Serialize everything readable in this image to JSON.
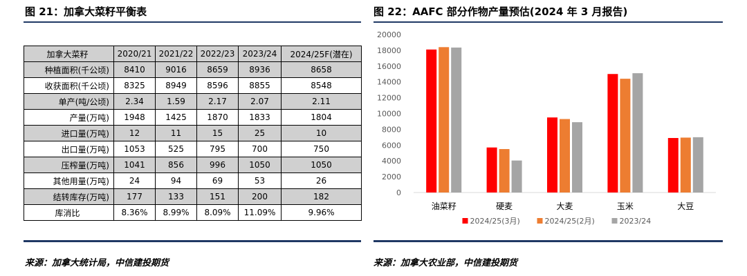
{
  "left_panel": {
    "title": "图 21：加拿大菜籽平衡表",
    "source": "来源：加拿大统计局，中信建投期货",
    "table": {
      "header": [
        "加拿大菜籽",
        "2020/21",
        "2021/22",
        "2022/23",
        "2023/24",
        "2024/25F(潜在)"
      ],
      "rows": [
        [
          "种植面积(千公顷)",
          "8410",
          "9016",
          "8659",
          "8936",
          "8658"
        ],
        [
          "收获面积(千公顷)",
          "8325",
          "8949",
          "8596",
          "8855",
          "8548"
        ],
        [
          "单产(吨/公顷)",
          "2.34",
          "1.59",
          "2.17",
          "2.07",
          "2.11"
        ],
        [
          "产量(万吨)",
          "1948",
          "1425",
          "1870",
          "1833",
          "1804"
        ],
        [
          "进口量(万吨)",
          "12",
          "11",
          "15",
          "25",
          "10"
        ],
        [
          "出口量(万吨)",
          "1053",
          "525",
          "795",
          "700",
          "750"
        ],
        [
          "压榨量(万吨)",
          "1041",
          "856",
          "996",
          "1050",
          "1050"
        ],
        [
          "其他用量(万吨)",
          "24",
          "94",
          "69",
          "53",
          "26"
        ],
        [
          "结转库存(万吨)",
          "177",
          "133",
          "151",
          "200",
          "182"
        ],
        [
          "库消比",
          "8.36%",
          "8.99%",
          "8.09%",
          "11.09%",
          "9.96%"
        ]
      ]
    }
  },
  "right_panel": {
    "title": "图 22：AAFC 部分作物产量预估(2024 年 3 月报告)",
    "source": "来源：加拿大农业部，中信建投期货"
  },
  "chart_data": {
    "type": "bar",
    "categories": [
      "油菜籽",
      "硬麦",
      "大麦",
      "玉米",
      "大豆"
    ],
    "series": [
      {
        "name": "2024/25(3月)",
        "color": "#ff0000",
        "values": [
          18100,
          5700,
          9500,
          15000,
          6900
        ]
      },
      {
        "name": "2024/25(2月)",
        "color": "#ed7d31",
        "values": [
          18400,
          5500,
          9300,
          14400,
          6950
        ]
      },
      {
        "name": "2023/24",
        "color": "#a5a5a5",
        "values": [
          18350,
          4050,
          8900,
          15100,
          7000
        ]
      }
    ],
    "ylim": [
      0,
      20000
    ],
    "yticks": [
      0,
      2000,
      4000,
      6000,
      8000,
      10000,
      12000,
      14000,
      16000,
      18000,
      20000
    ],
    "grid": false,
    "legend": "bottom"
  }
}
